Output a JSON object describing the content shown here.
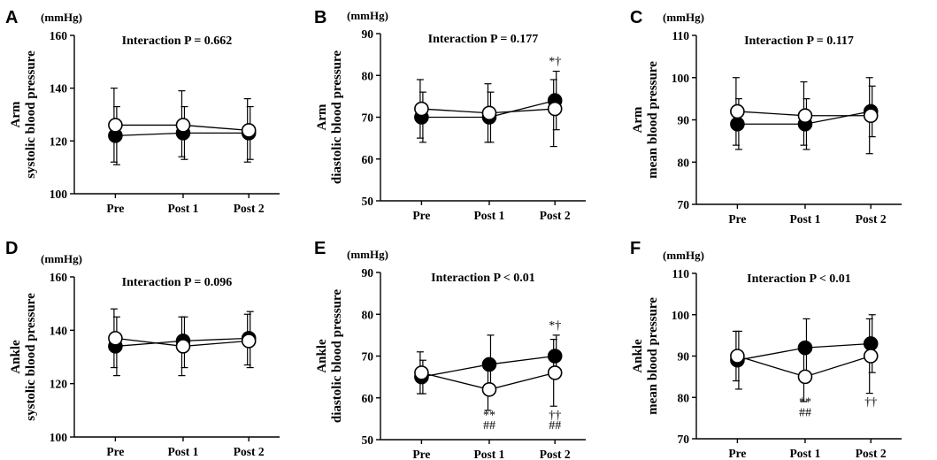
{
  "chart_data": [
    {
      "panel": "A",
      "type": "line",
      "region_label": "Arm",
      "ylabel": "systolic blood pressure",
      "unit": "(mmHg)",
      "interaction": "Interaction P = 0.662",
      "categories": [
        "Pre",
        "Post 1",
        "Post 2"
      ],
      "ylim": [
        100,
        160
      ],
      "yticks": [
        "100",
        "120",
        "140",
        "160"
      ],
      "series": [
        {
          "name": "filled",
          "values": [
            122,
            123,
            123
          ],
          "err_low": [
            111,
            113,
            113
          ],
          "err_high": [
            133,
            133,
            133
          ]
        },
        {
          "name": "open",
          "values": [
            126,
            126,
            124
          ],
          "err_low": [
            112,
            114,
            112
          ],
          "err_high": [
            140,
            139,
            136
          ]
        }
      ],
      "annotations": []
    },
    {
      "panel": "B",
      "type": "line",
      "region_label": "Arm",
      "ylabel": "diastolic blood pressure",
      "unit": "(mmHg)",
      "interaction": "Interaction P = 0.177",
      "categories": [
        "Pre",
        "Post 1",
        "Post 2"
      ],
      "ylim": [
        50,
        90
      ],
      "yticks": [
        "50",
        "60",
        "70",
        "80",
        "90"
      ],
      "series": [
        {
          "name": "filled",
          "values": [
            70,
            70,
            74
          ],
          "err_low": [
            64,
            64,
            67
          ],
          "err_high": [
            76,
            76,
            81
          ]
        },
        {
          "name": "open",
          "values": [
            72,
            71,
            72
          ],
          "err_low": [
            65,
            64,
            63
          ],
          "err_high": [
            79,
            78,
            79
          ]
        }
      ],
      "annotations": [
        {
          "cat": 2,
          "value": 82.5,
          "text": "*†"
        }
      ]
    },
    {
      "panel": "C",
      "type": "line",
      "region_label": "Arm",
      "ylabel": "mean blood pressure",
      "unit": "(mmHg)",
      "interaction": "Interaction P = 0.117",
      "categories": [
        "Pre",
        "Post 1",
        "Post 2"
      ],
      "ylim": [
        70,
        110
      ],
      "yticks": [
        "70",
        "80",
        "90",
        "100",
        "110"
      ],
      "series": [
        {
          "name": "filled",
          "values": [
            89,
            89,
            92
          ],
          "err_low": [
            83,
            83,
            86
          ],
          "err_high": [
            95,
            95,
            98
          ]
        },
        {
          "name": "open",
          "values": [
            92,
            91,
            91
          ],
          "err_low": [
            84,
            84,
            82
          ],
          "err_high": [
            100,
            99,
            100
          ]
        }
      ],
      "annotations": []
    },
    {
      "panel": "D",
      "type": "line",
      "region_label": "Ankle",
      "ylabel": "systolic blood pressure",
      "unit": "(mmHg)",
      "interaction": "Interaction P = 0.096",
      "categories": [
        "Pre",
        "Post 1",
        "Post 2"
      ],
      "ylim": [
        100,
        160
      ],
      "yticks": [
        "100",
        "120",
        "140",
        "160"
      ],
      "series": [
        {
          "name": "filled",
          "values": [
            134,
            136,
            137
          ],
          "err_low": [
            123,
            126,
            126
          ],
          "err_high": [
            145,
            145,
            147
          ]
        },
        {
          "name": "open",
          "values": [
            137,
            134,
            136
          ],
          "err_low": [
            126,
            123,
            127
          ],
          "err_high": [
            148,
            145,
            146
          ]
        }
      ],
      "annotations": []
    },
    {
      "panel": "E",
      "type": "line",
      "region_label": "Ankle",
      "ylabel": "diastolic blood pressure",
      "unit": "(mmHg)",
      "interaction": "Interaction P  < 0.01",
      "categories": [
        "Pre",
        "Post 1",
        "Post 2"
      ],
      "ylim": [
        50,
        90
      ],
      "yticks": [
        "50",
        "60",
        "70",
        "80",
        "90"
      ],
      "series": [
        {
          "name": "filled",
          "values": [
            65,
            68,
            70
          ],
          "err_low": [
            61,
            61,
            65
          ],
          "err_high": [
            69,
            75,
            75
          ]
        },
        {
          "name": "open",
          "values": [
            66,
            62,
            66
          ],
          "err_low": [
            61,
            57,
            58
          ],
          "err_high": [
            71,
            67,
            74
          ]
        }
      ],
      "annotations": [
        {
          "cat": 1,
          "value": 55,
          "text": "**"
        },
        {
          "cat": 1,
          "value": 52.5,
          "text": "##"
        },
        {
          "cat": 2,
          "value": 76.5,
          "text": "*†"
        },
        {
          "cat": 2,
          "value": 55,
          "text": "††"
        },
        {
          "cat": 2,
          "value": 52.5,
          "text": "##"
        }
      ]
    },
    {
      "panel": "F",
      "type": "line",
      "region_label": "Ankle",
      "ylabel": "mean blood pressure",
      "unit": "(mmHg)",
      "interaction": "Interaction P  < 0.01",
      "categories": [
        "Pre",
        "Post 1",
        "Post 2"
      ],
      "ylim": [
        70,
        110
      ],
      "yticks": [
        "70",
        "80",
        "90",
        "100",
        "110"
      ],
      "series": [
        {
          "name": "filled",
          "values": [
            89,
            92,
            93
          ],
          "err_low": [
            82,
            85,
            86
          ],
          "err_high": [
            96,
            99,
            100
          ]
        },
        {
          "name": "open",
          "values": [
            90,
            85,
            90
          ],
          "err_low": [
            84,
            79,
            81
          ],
          "err_high": [
            96,
            91,
            99
          ]
        }
      ],
      "annotations": [
        {
          "cat": 1,
          "value": 78,
          "text": "**"
        },
        {
          "cat": 1,
          "value": 75.5,
          "text": "##"
        },
        {
          "cat": 2,
          "value": 78,
          "text": "††"
        }
      ]
    }
  ]
}
